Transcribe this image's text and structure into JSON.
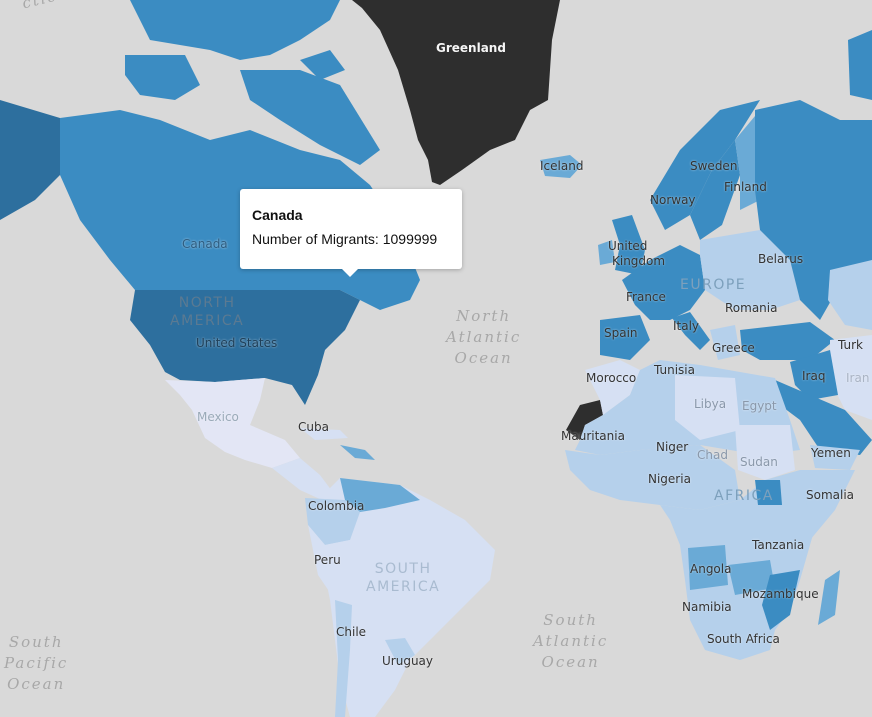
{
  "tooltip": {
    "country": "Canada",
    "metric_label": "Number of Migrants:",
    "metric_value": "1099999"
  },
  "legend_colors": {
    "highest": "#2d6f9e",
    "high": "#3b8cc2",
    "medium": "#6aaad6",
    "low": "#b5d0eb",
    "lowest": "#d6e0f3",
    "no_data": "#2e2e2e",
    "ocean": "#d9d9d9"
  },
  "countries": [
    {
      "name": "Greenland"
    },
    {
      "name": "Canada"
    },
    {
      "name": "United States"
    },
    {
      "name": "Mexico"
    },
    {
      "name": "Cuba"
    },
    {
      "name": "Colombia"
    },
    {
      "name": "Peru"
    },
    {
      "name": "Chile"
    },
    {
      "name": "Uruguay"
    },
    {
      "name": "Iceland"
    },
    {
      "name": "Sweden"
    },
    {
      "name": "Finland"
    },
    {
      "name": "Norway"
    },
    {
      "name": "United Kingdom"
    },
    {
      "name": "Belarus"
    },
    {
      "name": "France"
    },
    {
      "name": "Romania"
    },
    {
      "name": "Spain"
    },
    {
      "name": "Italy"
    },
    {
      "name": "Greece"
    },
    {
      "name": "Turkey"
    },
    {
      "name": "Morocco"
    },
    {
      "name": "Tunisia"
    },
    {
      "name": "Iraq"
    },
    {
      "name": "Iran"
    },
    {
      "name": "Libya"
    },
    {
      "name": "Egypt"
    },
    {
      "name": "Mauritania"
    },
    {
      "name": "Niger"
    },
    {
      "name": "Chad"
    },
    {
      "name": "Sudan"
    },
    {
      "name": "Yemen"
    },
    {
      "name": "Nigeria"
    },
    {
      "name": "Somalia"
    },
    {
      "name": "Tanzania"
    },
    {
      "name": "Angola"
    },
    {
      "name": "Mozambique"
    },
    {
      "name": "Namibia"
    },
    {
      "name": "South Africa"
    }
  ],
  "labels": {
    "greenland": "Greenland",
    "canada": "Canada",
    "united_states": "United States",
    "mexico": "Mexico",
    "cuba": "Cuba",
    "colombia": "Colombia",
    "peru": "Peru",
    "chile": "Chile",
    "uruguay": "Uruguay",
    "iceland": "Iceland",
    "sweden": "Sweden",
    "finland": "Finland",
    "norway": "Norway",
    "uk_line1": "United",
    "uk_line2": "Kingdom",
    "belarus": "Belarus",
    "france": "France",
    "romania": "Romania",
    "spain": "Spain",
    "italy": "Italy",
    "greece": "Greece",
    "turkey": "Turk",
    "morocco": "Morocco",
    "tunisia": "Tunisia",
    "iraq": "Iraq",
    "iran": "Iran",
    "libya": "Libya",
    "egypt": "Egypt",
    "mauritania": "Mauritania",
    "niger": "Niger",
    "chad": "Chad",
    "sudan": "Sudan",
    "yemen": "Yemen",
    "nigeria": "Nigeria",
    "somalia": "Somalia",
    "tanzania": "Tanzania",
    "angola": "Angola",
    "mozambique": "Mozambique",
    "namibia": "Namibia",
    "south_africa": "South Africa"
  },
  "continents": {
    "north_america": "NORTH\nAMERICA",
    "south_america": "SOUTH\nAMERICA",
    "europe": "EUROPE",
    "africa": "AFRICA"
  },
  "oceans": {
    "arctic": "ctic Ocea",
    "north_atlantic": "North\nAtlantic\nOcean",
    "south_atlantic": "South\nAtlantic\nOcean",
    "south_pacific": "South\nPacific\nOcean"
  }
}
